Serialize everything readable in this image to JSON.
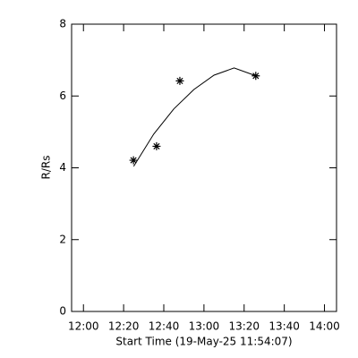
{
  "chart_data": {
    "type": "scatter",
    "x_label": "Start Time (19-May-25 11:54:07)",
    "y_label": "R/Rs",
    "xlim": [
      714.1,
      846
    ],
    "ylim": [
      0,
      8
    ],
    "xticks": [
      {
        "value": 720,
        "label": "12:00"
      },
      {
        "value": 740,
        "label": "12:20"
      },
      {
        "value": 760,
        "label": "12:40"
      },
      {
        "value": 780,
        "label": "13:00"
      },
      {
        "value": 800,
        "label": "13:20"
      },
      {
        "value": 820,
        "label": "13:40"
      },
      {
        "value": 840,
        "label": "14:00"
      }
    ],
    "yticks": [
      0,
      2,
      4,
      6,
      8
    ],
    "color": "#000000",
    "points": {
      "x": [
        744.9,
        756.4,
        768,
        805.8
      ],
      "values": [
        4.21,
        4.6,
        6.42,
        6.56
      ]
    },
    "fit": {
      "x": [
        745,
        755,
        765,
        775,
        785,
        795,
        805
      ],
      "values": [
        4.04,
        4.94,
        5.64,
        6.18,
        6.58,
        6.78,
        6.58
      ]
    }
  }
}
